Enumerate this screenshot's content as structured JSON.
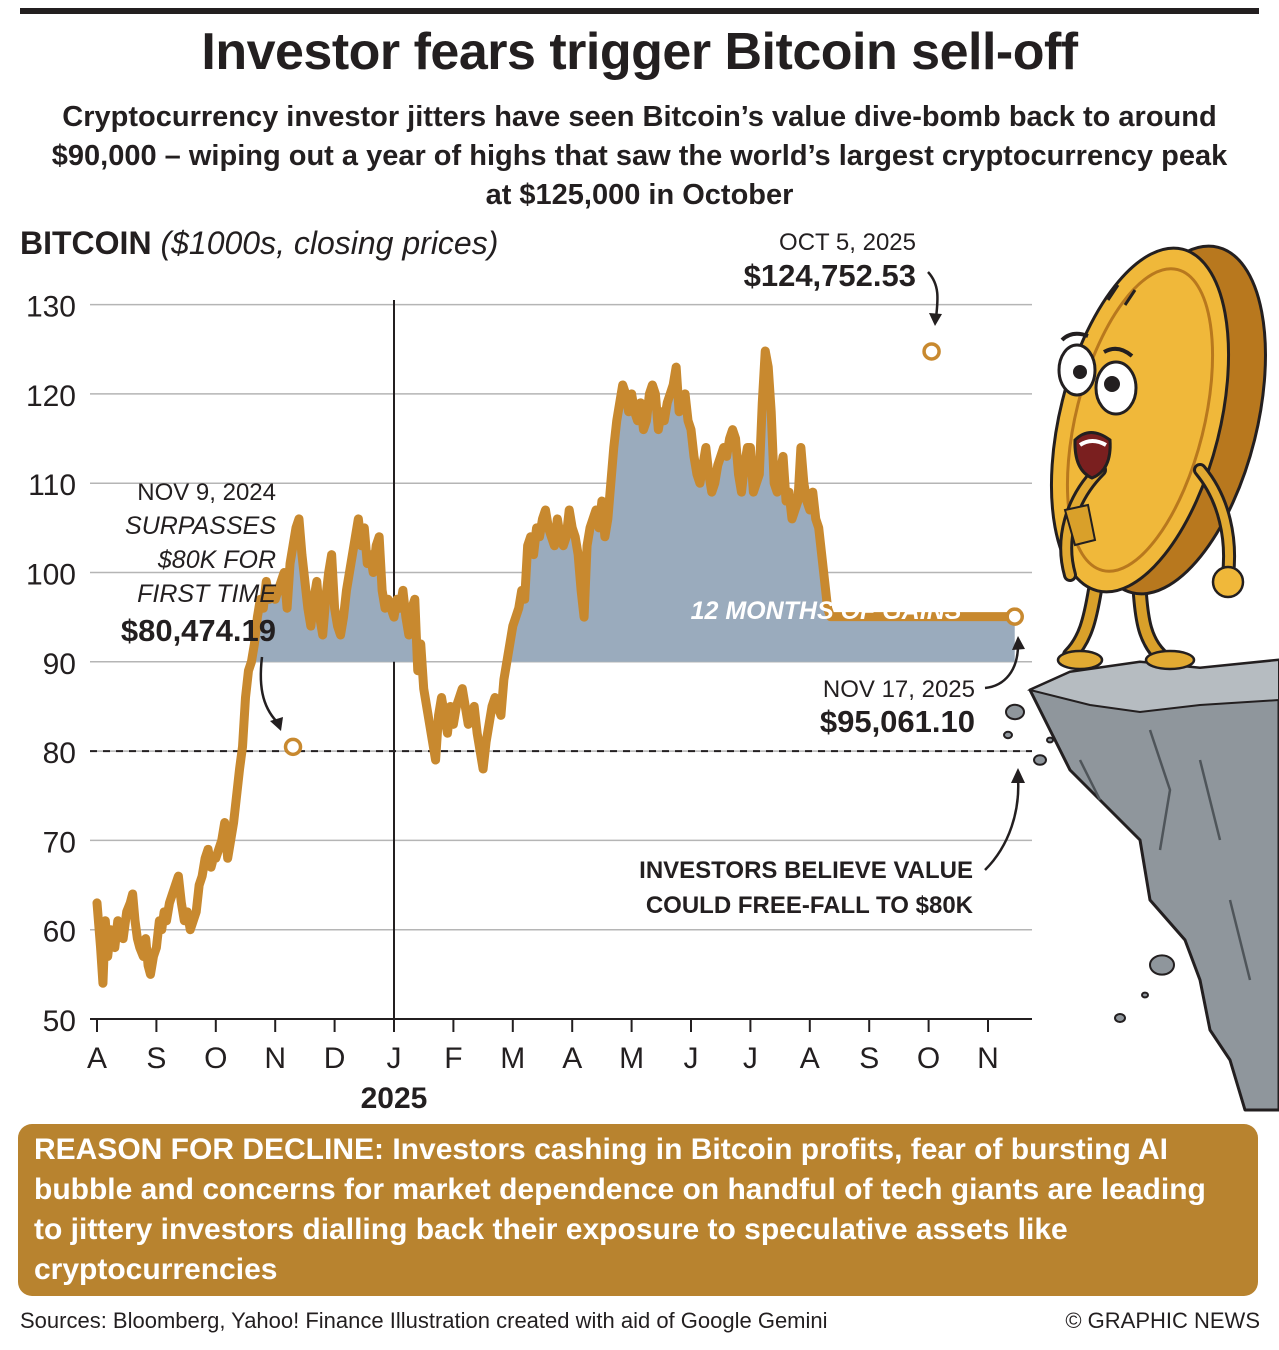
{
  "header": {
    "title": "Investor fears trigger Bitcoin sell-off",
    "subtitle": "Cryptocurrency investor jitters have seen Bitcoin’s value dive-bomb back to around $90,000 – wiping out a year of highs that saw the world’s largest cryptocurrency peak at $125,000 in October"
  },
  "chart_data": {
    "type": "area",
    "title": "BITCOIN",
    "ylabel": "($1000s, closing prices)",
    "xlabel": "",
    "ylim": [
      50,
      130
    ],
    "yticks": [
      50,
      60,
      70,
      80,
      90,
      100,
      110,
      120,
      130
    ],
    "months": [
      "A",
      "S",
      "O",
      "N",
      "D",
      "J",
      "F",
      "M",
      "A",
      "M",
      "J",
      "J",
      "A",
      "S",
      "O",
      "N"
    ],
    "year_label": "2025",
    "area_baseline": 90,
    "area_label": "12 MONTHS OF GAINS",
    "reference_line": 80,
    "colors": {
      "line": "#c8892f",
      "area": "#9aabbd",
      "grid": "#b5b5b5",
      "text": "#231f20"
    },
    "series": [
      {
        "name": "Bitcoin closing price",
        "x": [
          0,
          0.06,
          0.1,
          0.14,
          0.18,
          0.23,
          0.27,
          0.3,
          0.35,
          0.4,
          0.44,
          0.5,
          0.56,
          0.6,
          0.64,
          0.68,
          0.72,
          0.78,
          0.82,
          0.86,
          0.9,
          0.95,
          1.0,
          1.05,
          1.09,
          1.13,
          1.17,
          1.22,
          1.27,
          1.32,
          1.37,
          1.42,
          1.47,
          1.52,
          1.57,
          1.62,
          1.67,
          1.72,
          1.77,
          1.82,
          1.87,
          1.92,
          1.96,
          2.0,
          2.05,
          2.1,
          2.15,
          2.2,
          2.25,
          2.3,
          2.35,
          2.4,
          2.45,
          2.5,
          2.55,
          2.6,
          2.65,
          2.7,
          2.75,
          2.8,
          2.85,
          2.9,
          2.95,
          3.0,
          3.05,
          3.1,
          3.15,
          3.2,
          3.25,
          3.3,
          3.35,
          3.4,
          3.45,
          3.5,
          3.55,
          3.6,
          3.65,
          3.7,
          3.75,
          3.8,
          3.85,
          3.9,
          3.95,
          4.0,
          4.05,
          4.1,
          4.15,
          4.2,
          4.25,
          4.3,
          4.35,
          4.4,
          4.45,
          4.5,
          4.55,
          4.6,
          4.65,
          4.7,
          4.75,
          4.8,
          4.85,
          4.9,
          4.95,
          5.0,
          5.05,
          5.1,
          5.15,
          5.2,
          5.25,
          5.3,
          5.35,
          5.4,
          5.45,
          5.5,
          5.55,
          5.6,
          5.65,
          5.7,
          5.75,
          5.8,
          5.85,
          5.9,
          5.95,
          6.0,
          6.05,
          6.1,
          6.15,
          6.2,
          6.25,
          6.3,
          6.35,
          6.4,
          6.45,
          6.5,
          6.55,
          6.6,
          6.65,
          6.7,
          6.75,
          6.8,
          6.85,
          6.9,
          6.95,
          7.0,
          7.05,
          7.1,
          7.15,
          7.2,
          7.25,
          7.3,
          7.35,
          7.4,
          7.45,
          7.5,
          7.55,
          7.6,
          7.65,
          7.7,
          7.75,
          7.8,
          7.85,
          7.9,
          7.95,
          8.0,
          8.05,
          8.1,
          8.15,
          8.2,
          8.25,
          8.3,
          8.35,
          8.4,
          8.45,
          8.5,
          8.55,
          8.6,
          8.65,
          8.7,
          8.75,
          8.8,
          8.85,
          8.9,
          8.95,
          9.0,
          9.05,
          9.1,
          9.15,
          9.2,
          9.25,
          9.3,
          9.35,
          9.4,
          9.45,
          9.5,
          9.55,
          9.6,
          9.65,
          9.7,
          9.75,
          9.8,
          9.85,
          9.9,
          9.95,
          10.0,
          10.05,
          10.1,
          10.15,
          10.2,
          10.25,
          10.3,
          10.35,
          10.4,
          10.45,
          10.5,
          10.55,
          10.6,
          10.65,
          10.7,
          10.75,
          10.8,
          10.85,
          10.9,
          10.95,
          11.0,
          11.05,
          11.1,
          11.15,
          11.2,
          11.25,
          11.3,
          11.35,
          11.4,
          11.45,
          11.5,
          11.55,
          11.6,
          11.65,
          11.7,
          11.75,
          11.8,
          11.85,
          11.9,
          11.95,
          12.0,
          12.05,
          12.1,
          12.15,
          12.2,
          12.25,
          12.3,
          12.35,
          12.4,
          12.45,
          12.5,
          12.55,
          12.6,
          12.65,
          12.7,
          12.75,
          12.8,
          12.85,
          12.9,
          12.95,
          13.0,
          13.05,
          13.1,
          13.15,
          13.2,
          13.25,
          13.3,
          13.35,
          13.4,
          13.45,
          13.5,
          13.55,
          13.6,
          13.65,
          13.7,
          13.75,
          13.8,
          13.85,
          13.9,
          13.95,
          14.0,
          14.05,
          14.1,
          14.15,
          14.2,
          14.25,
          14.3,
          14.35,
          14.4,
          14.45,
          14.5,
          14.55,
          14.6,
          14.65,
          14.7,
          14.75,
          14.8,
          14.85,
          14.9,
          14.95,
          15.0,
          15.05,
          15.1,
          15.15,
          15.2,
          15.25,
          15.3,
          15.35,
          15.4,
          15.45,
          15.55
        ],
        "values": [
          63,
          58,
          54,
          61,
          57,
          60,
          59,
          58,
          61,
          60,
          59,
          62,
          63,
          64,
          61,
          59,
          58,
          57,
          59,
          56,
          55,
          57,
          58,
          61,
          60,
          62,
          61,
          63,
          64,
          65,
          66,
          63,
          61,
          62,
          60,
          61,
          62,
          65,
          66,
          68,
          69,
          67,
          68,
          68,
          69,
          70,
          72,
          68,
          70,
          72,
          75,
          78,
          80.5,
          86,
          89,
          90,
          92,
          95,
          97,
          96,
          99,
          97,
          98,
          97,
          98,
          99,
          100,
          96,
          101,
          103,
          105,
          106,
          102,
          99,
          96,
          94,
          97,
          99,
          95,
          93,
          97,
          100,
          102,
          96,
          94,
          93,
          95,
          98,
          100,
          102,
          104,
          106,
          103,
          105,
          101,
          102,
          100,
          103,
          104,
          98,
          96,
          97,
          96,
          95,
          97,
          96,
          98,
          95,
          93,
          96,
          97,
          89,
          92,
          87,
          85,
          83,
          81,
          79,
          84,
          86,
          84,
          82,
          85,
          83,
          85,
          86,
          87,
          85,
          83,
          84,
          85,
          82,
          80,
          78,
          81,
          83,
          85,
          86,
          85,
          84,
          88,
          90,
          92,
          94,
          95,
          96,
          98,
          97,
          103,
          104,
          102,
          105,
          104,
          106,
          107,
          105,
          104,
          103,
          106,
          104,
          103,
          104,
          107,
          105,
          104,
          102,
          98,
          95,
          103,
          105,
          106,
          107,
          105,
          108,
          104,
          106,
          110,
          114,
          117,
          119,
          121,
          120,
          118,
          120,
          118,
          117,
          119,
          116,
          117,
          120,
          121,
          120,
          116,
          118,
          117,
          119,
          120,
          121,
          123,
          118,
          119,
          120,
          117,
          116,
          113,
          111,
          110,
          112,
          114,
          111,
          109,
          110,
          112,
          113,
          114,
          113,
          115,
          116,
          115,
          111,
          109,
          112,
          114,
          114,
          109,
          110,
          111,
          119,
          124.8,
          123,
          118,
          110,
          109,
          111,
          113,
          108,
          109,
          106,
          107,
          108,
          114,
          110,
          108,
          107,
          109,
          106,
          105,
          102,
          99,
          96,
          95.06,
          95.06,
          95.06,
          95.06,
          95.06,
          95.06,
          95.06,
          95.06,
          95.06,
          95.06,
          95.06,
          95.06,
          95.06,
          95.06,
          95.06,
          95.06,
          95.06,
          95.06,
          95.06,
          95.06,
          95.06,
          95.06,
          95.06,
          95.06,
          95.06,
          95.06,
          95.06,
          95.06,
          95.06,
          95.06,
          95.06,
          95.06,
          95.06,
          95.06,
          95.06,
          95.06,
          95.06,
          95.06,
          95.06,
          95.06,
          95.06,
          95.06,
          95.06,
          95.06,
          95.06,
          95.06,
          95.06,
          95.06,
          95.06,
          95.06,
          95.06,
          95.06,
          95.06,
          95.06,
          95.06,
          95.06,
          95.06,
          95.06,
          95.06,
          95.06,
          95.06,
          95.06,
          95.06,
          95.06
        ]
      }
    ],
    "annotations": [
      {
        "id": "nov2024",
        "x": 3.3,
        "value": 80.47419,
        "date": "NOV 9, 2024",
        "lines": [
          "SURPASSES",
          "$80K FOR",
          "FIRST TIME"
        ],
        "price": "$80,474.19"
      },
      {
        "id": "oct2025",
        "x": 14.05,
        "value": 124.75253,
        "date": "OCT 5, 2025",
        "price": "$124,752.53"
      },
      {
        "id": "nov2025",
        "x": 15.45,
        "value": 95.0611,
        "date": "NOV 17, 2025",
        "price": "$95,061.10"
      },
      {
        "id": "freefall",
        "lines": [
          "INVESTORS BELIEVE VALUE",
          "COULD FREE-FALL TO $80K"
        ]
      }
    ]
  },
  "reason": {
    "heading": "REASON FOR DECLINE:",
    "text": " Investors cashing in Bitcoin profits, fear of bursting AI bubble and concerns for market dependence on handful of tech giants are leading to jittery investors dialling back their exposure to speculative assets like cryptocurrencies"
  },
  "footer": {
    "sources": "Sources: Bloomberg, Yahoo! Finance  Illustration created with aid of Google Gemini",
    "credit": "© GRAPHIC NEWS"
  }
}
